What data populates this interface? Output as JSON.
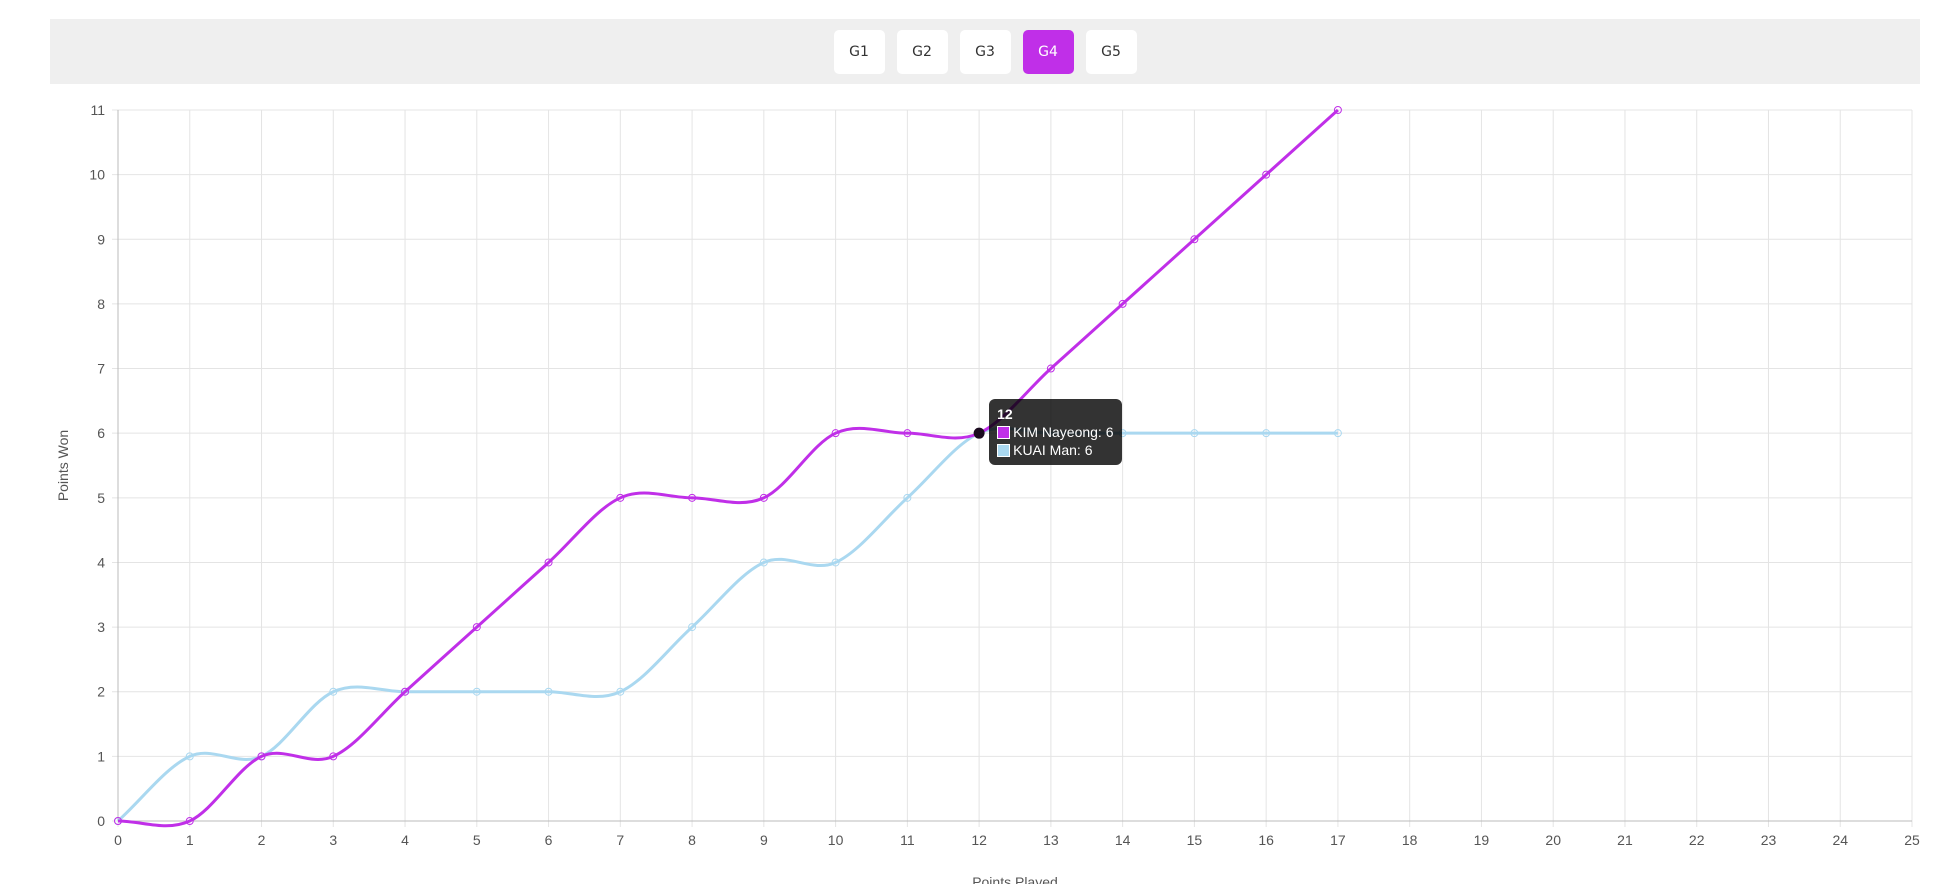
{
  "games": {
    "tabs": [
      {
        "label": "G1",
        "active": false
      },
      {
        "label": "G2",
        "active": false
      },
      {
        "label": "G3",
        "active": false
      },
      {
        "label": "G4",
        "active": true
      },
      {
        "label": "G5",
        "active": false
      }
    ],
    "active_color": "#c02fe8"
  },
  "chart_data": {
    "type": "line",
    "xlabel": "Points Played",
    "ylabel": "Points Won",
    "xlim": [
      0,
      25
    ],
    "ylim": [
      0,
      11
    ],
    "x_ticks": [
      0,
      1,
      2,
      3,
      4,
      5,
      6,
      7,
      8,
      9,
      10,
      11,
      12,
      13,
      14,
      15,
      16,
      17,
      18,
      19,
      20,
      21,
      22,
      23,
      24,
      25
    ],
    "y_ticks": [
      0,
      1,
      2,
      3,
      4,
      5,
      6,
      7,
      8,
      9,
      10,
      11
    ],
    "grid": true,
    "series": [
      {
        "name": "KIM Nayeong",
        "color": "#c02fe8",
        "x": [
          0,
          1,
          2,
          3,
          4,
          5,
          6,
          7,
          8,
          9,
          10,
          11,
          12,
          13,
          14,
          15,
          16,
          17
        ],
        "values": [
          0,
          0,
          1,
          1,
          2,
          3,
          4,
          5,
          5,
          5,
          6,
          6,
          6,
          7,
          8,
          9,
          10,
          11
        ]
      },
      {
        "name": "KUAI Man",
        "color": "#aad8f0",
        "x": [
          0,
          1,
          2,
          3,
          4,
          5,
          6,
          7,
          8,
          9,
          10,
          11,
          12,
          13,
          14,
          15,
          16,
          17
        ],
        "values": [
          0,
          1,
          1,
          2,
          2,
          2,
          2,
          2,
          3,
          4,
          4,
          5,
          6,
          6,
          6,
          6,
          6,
          6
        ]
      }
    ],
    "tooltip": {
      "title": "12",
      "items": [
        {
          "text": "KIM Nayeong: 6",
          "color": "#c02fe8"
        },
        {
          "text": "KUAI Man: 6",
          "color": "#aad8f0"
        }
      ]
    }
  }
}
